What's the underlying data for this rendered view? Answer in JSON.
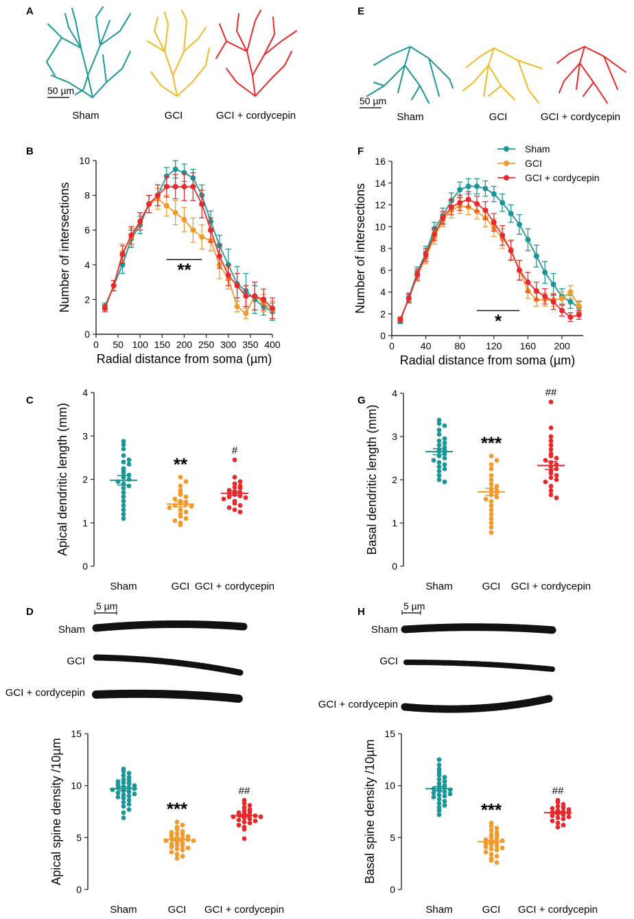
{
  "colors": {
    "sham": "#1a9696",
    "gci": "#f39a2c",
    "cord": "#e8282a",
    "axis": "#222222"
  },
  "panels": {
    "A": {
      "letter": "A",
      "scale": "50 µm",
      "groups": [
        "Sham",
        "GCI",
        "GCI + cordycepin"
      ]
    },
    "E": {
      "letter": "E",
      "scale": "50 µm",
      "groups": [
        "Sham",
        "GCI",
        "GCI + cordycepin"
      ]
    },
    "D": {
      "letter": "D",
      "scale": "5 µm",
      "rows": [
        "Sham",
        "GCI",
        "GCI + cordycepin"
      ]
    },
    "H": {
      "letter": "H",
      "scale": "5 µm",
      "rows": [
        "Sham",
        "GCI",
        "GCI + cordycepin"
      ]
    }
  },
  "chart_data": [
    {
      "id": "B",
      "letter": "B",
      "type": "line",
      "xlabel": "Radial distance from soma (µm)",
      "ylabel": "Number of intersections",
      "xlim": [
        0,
        400
      ],
      "ylim": [
        0,
        10
      ],
      "xticks": [
        0,
        50,
        100,
        150,
        200,
        250,
        300,
        350,
        400
      ],
      "yticks": [
        0,
        2,
        4,
        6,
        8,
        10
      ],
      "x": [
        20,
        40,
        60,
        80,
        100,
        120,
        140,
        160,
        180,
        200,
        220,
        240,
        260,
        280,
        300,
        320,
        340,
        360,
        380,
        400
      ],
      "series": [
        {
          "name": "Sham",
          "color": "#1a9696",
          "values": [
            1.6,
            2.8,
            4.0,
            5.5,
            6.3,
            7.5,
            8.0,
            9.1,
            9.5,
            9.3,
            9.0,
            8.0,
            6.5,
            5.1,
            4.0,
            2.9,
            2.5,
            2.0,
            1.6,
            1.3
          ],
          "err": [
            0.2,
            0.3,
            0.5,
            0.5,
            0.5,
            0.5,
            0.6,
            0.5,
            0.5,
            0.5,
            0.5,
            0.6,
            0.6,
            0.6,
            0.9,
            1.0,
            1.0,
            0.8,
            0.5,
            0.5
          ]
        },
        {
          "name": "GCI",
          "color": "#f39a2c",
          "values": [
            1.5,
            2.8,
            4.7,
            5.6,
            6.5,
            7.5,
            7.8,
            7.4,
            7.0,
            6.6,
            6.0,
            5.6,
            5.4,
            4.0,
            3.2,
            1.6,
            1.2,
            2.2,
            1.8,
            1.4
          ],
          "err": [
            0.2,
            0.3,
            0.5,
            0.5,
            0.5,
            0.5,
            0.6,
            0.6,
            0.7,
            0.7,
            0.7,
            0.7,
            0.6,
            0.8,
            0.6,
            0.3,
            0.3,
            0.8,
            0.5,
            0.5
          ]
        },
        {
          "name": "GCI + cordycepin",
          "color": "#e8282a",
          "values": [
            1.5,
            2.8,
            4.6,
            5.7,
            6.5,
            7.5,
            8.0,
            8.5,
            8.5,
            8.5,
            8.5,
            7.5,
            6.0,
            4.5,
            3.4,
            2.8,
            2.2,
            2.2,
            2.0,
            1.5
          ],
          "err": [
            0.2,
            0.3,
            0.5,
            0.5,
            0.5,
            0.5,
            0.6,
            0.6,
            0.7,
            0.8,
            0.8,
            0.8,
            0.7,
            0.7,
            0.6,
            0.7,
            0.6,
            0.8,
            0.6,
            0.6
          ]
        }
      ],
      "annotation": {
        "text": "**",
        "x_from": 160,
        "x_to": 240,
        "y": 4.3
      }
    },
    {
      "id": "F",
      "letter": "F",
      "type": "line",
      "xlabel": "Radial distance from soma (µm)",
      "ylabel": "Number of intersections",
      "xlim": [
        0,
        225
      ],
      "ylim": [
        0,
        16
      ],
      "xticks": [
        0,
        40,
        80,
        120,
        160,
        200
      ],
      "yticks": [
        0,
        2,
        4,
        6,
        8,
        10,
        12,
        14,
        16
      ],
      "x": [
        10,
        20,
        30,
        40,
        50,
        60,
        70,
        80,
        90,
        100,
        110,
        120,
        130,
        140,
        150,
        160,
        170,
        180,
        190,
        200,
        210,
        220
      ],
      "series": [
        {
          "name": "Sham",
          "color": "#1a9696",
          "values": [
            1.3,
            3.5,
            5.8,
            7.6,
            9.8,
            11.0,
            12.4,
            13.4,
            13.7,
            13.7,
            13.5,
            13.0,
            12.2,
            11.2,
            10.2,
            8.8,
            7.3,
            5.8,
            4.7,
            3.6,
            3.1,
            2.6
          ],
          "err": [
            0.2,
            0.4,
            0.5,
            0.6,
            0.6,
            0.7,
            0.7,
            0.7,
            0.7,
            0.7,
            0.7,
            0.7,
            0.8,
            0.8,
            0.9,
            1.0,
            1.0,
            1.0,
            1.0,
            0.7,
            0.6,
            0.5
          ]
        },
        {
          "name": "GCI",
          "color": "#f39a2c",
          "values": [
            1.5,
            3.4,
            5.5,
            7.2,
            9.0,
            10.6,
            11.5,
            11.9,
            11.8,
            11.4,
            10.8,
            9.9,
            8.9,
            7.9,
            6.0,
            4.1,
            3.3,
            3.3,
            3.3,
            3.4,
            4.0,
            2.7
          ],
          "err": [
            0.2,
            0.4,
            0.5,
            0.6,
            0.6,
            0.6,
            0.7,
            0.7,
            0.7,
            0.7,
            0.8,
            0.8,
            0.9,
            0.9,
            0.9,
            0.7,
            0.6,
            0.6,
            0.6,
            0.6,
            0.6,
            0.5
          ]
        },
        {
          "name": "GCI + cordycepin",
          "color": "#e8282a",
          "values": [
            1.5,
            3.4,
            5.6,
            7.4,
            9.3,
            10.8,
            11.8,
            12.2,
            12.5,
            12.1,
            11.5,
            10.4,
            9.2,
            7.8,
            6.0,
            4.9,
            4.1,
            3.6,
            3.1,
            2.3,
            1.7,
            1.9
          ],
          "err": [
            0.2,
            0.4,
            0.5,
            0.6,
            0.6,
            0.6,
            0.7,
            0.7,
            0.7,
            0.7,
            0.8,
            0.8,
            0.9,
            0.9,
            0.9,
            0.9,
            0.8,
            0.7,
            0.7,
            0.5,
            0.4,
            0.4
          ]
        }
      ],
      "legend": [
        "Sham",
        "GCI",
        "GCI + cordycepin"
      ],
      "annotation": {
        "text": "*",
        "x_from": 100,
        "x_to": 150,
        "y": 2.3
      }
    },
    {
      "id": "C",
      "letter": "C",
      "type": "scatter",
      "ylabel": "Apical dendritic length (mm)",
      "ylim": [
        0,
        4
      ],
      "yticks": [
        0,
        1,
        2,
        3,
        4
      ],
      "categories": [
        "Sham",
        "GCI",
        "GCI + cordycepin"
      ],
      "means": [
        1.98,
        1.43,
        1.68
      ],
      "sems": [
        0.11,
        0.06,
        0.05
      ],
      "marks": [
        "",
        "**",
        "#"
      ],
      "points": [
        [
          2.88,
          2.8,
          2.7,
          2.55,
          2.45,
          2.4,
          2.35,
          2.25,
          2.2,
          2.15,
          2.1,
          2.05,
          2.0,
          1.95,
          1.9,
          1.85,
          1.8,
          1.7,
          1.6,
          1.5,
          1.4,
          1.3,
          1.2,
          1.1
        ],
        [
          2.05,
          1.95,
          1.85,
          1.75,
          1.7,
          1.65,
          1.6,
          1.55,
          1.5,
          1.48,
          1.45,
          1.42,
          1.4,
          1.38,
          1.35,
          1.3,
          1.25,
          1.2,
          1.15,
          1.1,
          1.05,
          1.0,
          0.95
        ],
        [
          2.45,
          2.05,
          1.95,
          1.9,
          1.85,
          1.82,
          1.8,
          1.75,
          1.72,
          1.7,
          1.68,
          1.65,
          1.62,
          1.6,
          1.58,
          1.55,
          1.5,
          1.45,
          1.4,
          1.35,
          1.3,
          1.25
        ]
      ]
    },
    {
      "id": "G",
      "letter": "G",
      "type": "scatter",
      "ylabel": "Basal dendritic length (mm)",
      "ylim": [
        0,
        4
      ],
      "yticks": [
        0,
        1,
        2,
        3,
        4
      ],
      "categories": [
        "Sham",
        "GCI",
        "GCI + cordycepin"
      ],
      "means": [
        2.65,
        1.72,
        2.33
      ],
      "sems": [
        0.07,
        0.08,
        0.09
      ],
      "marks": [
        "",
        "***",
        "##"
      ],
      "points": [
        [
          3.38,
          3.3,
          3.25,
          3.15,
          3.05,
          2.95,
          2.9,
          2.85,
          2.8,
          2.75,
          2.7,
          2.68,
          2.65,
          2.6,
          2.55,
          2.5,
          2.45,
          2.4,
          2.35,
          2.3,
          2.25,
          2.2,
          2.1,
          2.0,
          1.95
        ],
        [
          2.55,
          2.45,
          2.35,
          2.25,
          2.1,
          2.0,
          1.9,
          1.85,
          1.8,
          1.75,
          1.72,
          1.7,
          1.65,
          1.6,
          1.55,
          1.5,
          1.4,
          1.3,
          1.2,
          1.1,
          1.0,
          0.9,
          0.78
        ],
        [
          3.8,
          3.2,
          3.0,
          2.9,
          2.8,
          2.7,
          2.6,
          2.55,
          2.5,
          2.45,
          2.4,
          2.35,
          2.3,
          2.25,
          2.2,
          2.15,
          2.1,
          2.05,
          2.0,
          1.95,
          1.85,
          1.75,
          1.65,
          1.58
        ]
      ]
    },
    {
      "id": "Dchart",
      "type": "scatter",
      "ylabel": "Apical spine density /10µm",
      "ylim": [
        0,
        15
      ],
      "yticks": [
        0,
        5,
        10,
        15
      ],
      "categories": [
        "Sham",
        "GCI",
        "GCI + cordycepin"
      ],
      "means": [
        9.7,
        4.8,
        7.1
      ],
      "sems": [
        0.18,
        0.12,
        0.12
      ],
      "marks": [
        "",
        "***",
        "##"
      ],
      "points": [
        [
          11.6,
          11.4,
          11.2,
          11.0,
          10.8,
          10.6,
          10.5,
          10.4,
          10.3,
          10.2,
          10.1,
          10.0,
          9.9,
          9.8,
          9.8,
          9.7,
          9.6,
          9.5,
          9.4,
          9.3,
          9.2,
          9.1,
          9.0,
          8.9,
          8.8,
          8.6,
          8.4,
          8.2,
          8.0,
          7.7,
          7.4,
          6.9
        ],
        [
          6.5,
          6.2,
          6.0,
          5.8,
          5.6,
          5.5,
          5.4,
          5.3,
          5.2,
          5.1,
          5.0,
          4.9,
          4.9,
          4.8,
          4.7,
          4.7,
          4.6,
          4.5,
          4.4,
          4.3,
          4.2,
          4.1,
          4.0,
          3.9,
          3.8,
          3.6,
          3.4,
          3.2,
          3.0
        ],
        [
          8.6,
          8.3,
          8.1,
          7.9,
          7.7,
          7.6,
          7.5,
          7.4,
          7.3,
          7.2,
          7.2,
          7.1,
          7.0,
          7.0,
          6.9,
          6.8,
          6.7,
          6.6,
          6.5,
          6.4,
          6.2,
          6.0,
          5.8,
          4.9
        ]
      ]
    },
    {
      "id": "Hchart",
      "type": "scatter",
      "ylabel": "Basal spine density /10µm",
      "ylim": [
        0,
        15
      ],
      "yticks": [
        0,
        5,
        10,
        15
      ],
      "categories": [
        "Sham",
        "GCI",
        "GCI + cordycepin"
      ],
      "means": [
        9.7,
        4.6,
        7.4
      ],
      "sems": [
        0.2,
        0.14,
        0.1
      ],
      "marks": [
        "",
        "***",
        "##"
      ],
      "points": [
        [
          12.5,
          12.0,
          11.6,
          11.3,
          11.0,
          10.8,
          10.6,
          10.4,
          10.2,
          10.0,
          9.9,
          9.8,
          9.7,
          9.6,
          9.5,
          9.4,
          9.3,
          9.2,
          9.1,
          9.0,
          8.9,
          8.7,
          8.5,
          8.3,
          8.1,
          7.9,
          7.6,
          7.2
        ],
        [
          6.4,
          6.1,
          5.9,
          5.7,
          5.5,
          5.3,
          5.2,
          5.0,
          4.9,
          4.8,
          4.7,
          4.6,
          4.5,
          4.4,
          4.3,
          4.2,
          4.1,
          4.0,
          3.9,
          3.8,
          3.6,
          3.4,
          3.2,
          3.0,
          2.8,
          2.6
        ],
        [
          8.6,
          8.4,
          8.2,
          8.0,
          7.9,
          7.8,
          7.7,
          7.6,
          7.5,
          7.4,
          7.4,
          7.3,
          7.2,
          7.1,
          7.0,
          6.9,
          6.8,
          6.6,
          6.4,
          6.2,
          6.0
        ]
      ]
    }
  ]
}
